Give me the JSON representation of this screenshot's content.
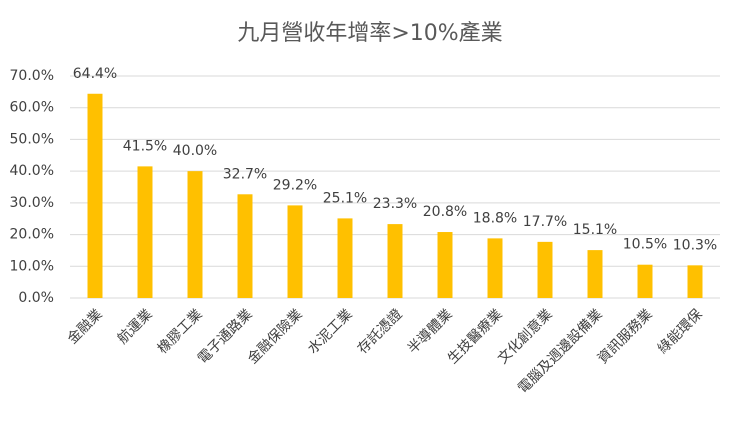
{
  "chart_data": {
    "type": "bar",
    "title": "九月營收年增率>10%產業",
    "categories": [
      "金融業",
      "航運業",
      "橡膠工業",
      "電子通路業",
      "金融保險業",
      "水泥工業",
      "存託憑證",
      "半導體業",
      "生技醫療業",
      "文化創意業",
      "電腦及週邊設備業",
      "資訊服務業",
      "綠能環保"
    ],
    "values": [
      64.4,
      41.5,
      40.0,
      32.7,
      29.2,
      25.1,
      23.3,
      20.8,
      18.8,
      17.7,
      15.1,
      10.5,
      10.3
    ],
    "value_labels": [
      "64.4%",
      "41.5%",
      "40.0%",
      "32.7%",
      "29.2%",
      "25.1%",
      "23.3%",
      "20.8%",
      "18.8%",
      "17.7%",
      "15.1%",
      "10.5%",
      "10.3%"
    ],
    "color": "#ffc000",
    "ylim": [
      0,
      70
    ],
    "yticks": [
      {
        "value": 0,
        "label": "0.0%"
      },
      {
        "value": 10,
        "label": "10.0%"
      },
      {
        "value": 20,
        "label": "20.0%"
      },
      {
        "value": 30,
        "label": "30.0%"
      },
      {
        "value": 40,
        "label": "40.0%"
      },
      {
        "value": 50,
        "label": "50.0%"
      },
      {
        "value": 60,
        "label": "60.0%"
      },
      {
        "value": 70,
        "label": "70.0%"
      }
    ],
    "grid": true
  }
}
